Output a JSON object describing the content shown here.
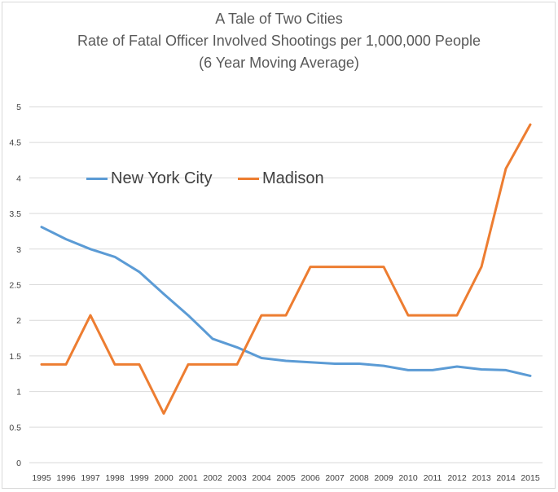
{
  "chart_data": {
    "type": "line",
    "title": "A Tale of Two Cities",
    "subtitle_1": "Rate of Fatal Officer Involved Shootings per 1,000,000 People",
    "subtitle_2": "(6 Year Moving Average)",
    "xlabel": "",
    "ylabel": "",
    "categories": [
      "1995",
      "1996",
      "1997",
      "1998",
      "1999",
      "2000",
      "2001",
      "2002",
      "2003",
      "2004",
      "2005",
      "2006",
      "2007",
      "2008",
      "2009",
      "2010",
      "2011",
      "2012",
      "2013",
      "2014",
      "2015"
    ],
    "ylim": [
      0,
      5
    ],
    "y_ticks": [
      0,
      0.5,
      1,
      1.5,
      2,
      2.5,
      3,
      3.5,
      4,
      4.5,
      5
    ],
    "y_tick_labels": [
      "0",
      "0.5",
      "1",
      "1.5",
      "2",
      "2.5",
      "3",
      "3.5",
      "4",
      "4.5",
      "5"
    ],
    "grid": true,
    "legend_position": "inside-top-left",
    "series": [
      {
        "name": "New York City",
        "color": "#5b9bd5",
        "values": [
          3.31,
          3.14,
          3.0,
          2.89,
          2.68,
          2.37,
          2.07,
          1.74,
          1.62,
          1.47,
          1.43,
          1.41,
          1.39,
          1.39,
          1.36,
          1.3,
          1.3,
          1.35,
          1.31,
          1.3,
          1.22
        ]
      },
      {
        "name": "Madison",
        "color": "#ed7d31",
        "values": [
          1.38,
          1.38,
          2.07,
          1.38,
          1.38,
          0.69,
          1.38,
          1.38,
          1.38,
          2.07,
          2.07,
          2.75,
          2.75,
          2.75,
          2.75,
          2.07,
          2.07,
          2.07,
          2.75,
          4.13,
          4.75
        ]
      }
    ]
  }
}
